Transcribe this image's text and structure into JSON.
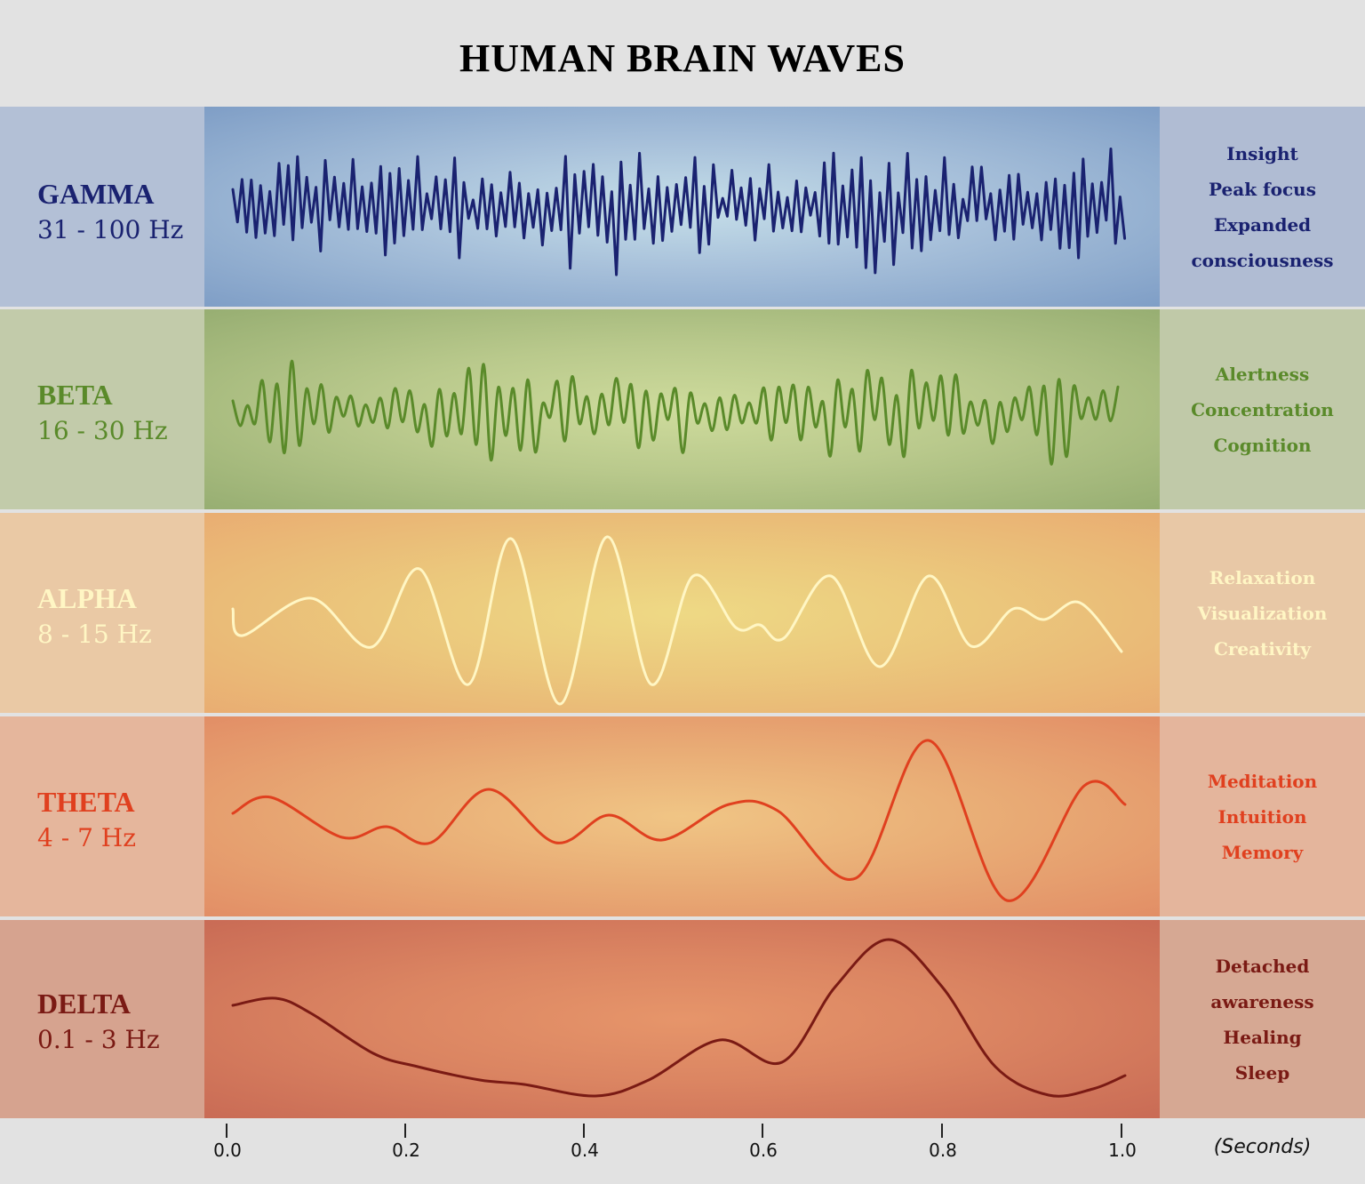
{
  "title": "HUMAN BRAIN WAVES",
  "bands": [
    {
      "name": "GAMMA",
      "range": "31 - 100 Hz",
      "traits": [
        "Insight",
        "Peak focus",
        "Expanded",
        "consciousness"
      ],
      "color": "#1a2270"
    },
    {
      "name": "BETA",
      "range": "16 - 30 Hz",
      "traits": [
        "Alertness",
        "Concentration",
        "Cognition"
      ],
      "color": "#5a8a2a"
    },
    {
      "name": "ALPHA",
      "range": "8 - 15 Hz",
      "traits": [
        "Relaxation",
        "Visualization",
        "Creativity"
      ],
      "color": "#fff6c4"
    },
    {
      "name": "THETA",
      "range": "4 - 7 Hz",
      "traits": [
        "Meditation",
        "Intuition",
        "Memory"
      ],
      "color": "#e0401f"
    },
    {
      "name": "DELTA",
      "range": "0.1 - 3 Hz",
      "traits": [
        "Detached",
        "awareness",
        "Healing",
        "Sleep"
      ],
      "color": "#7a1a14"
    }
  ],
  "axis": {
    "ticks": [
      "0.0",
      "0.2",
      "0.4",
      "0.6",
      "0.8",
      "1.0"
    ],
    "unit": "(Seconds)"
  }
}
